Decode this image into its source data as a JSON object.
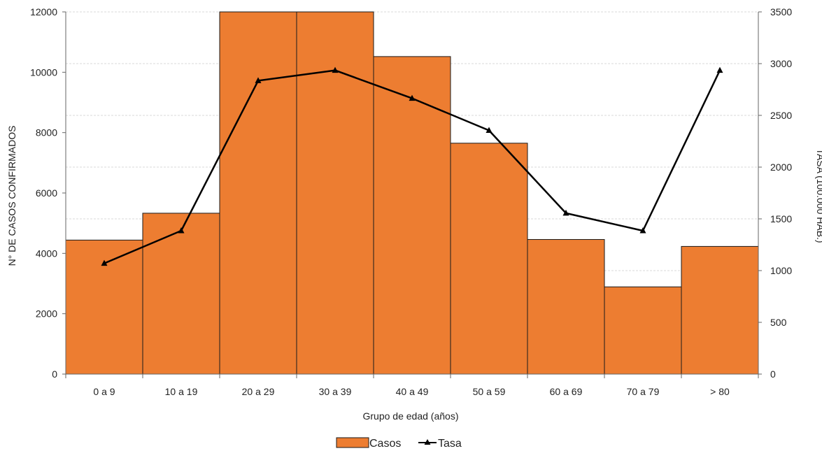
{
  "chart_data": {
    "type": "bar",
    "categories": [
      "0 a 9",
      "10 a 19",
      "20 a 29",
      "30 a 39",
      "40 a 49",
      "50 a 59",
      "60 a 69",
      "70 a 79",
      "> 80"
    ],
    "series": [
      {
        "name": "Casos",
        "kind": "bar",
        "axis": "left",
        "values": [
          4440,
          5330,
          12300,
          12300,
          10520,
          7650,
          4460,
          2890,
          4230
        ]
      },
      {
        "name": "Tasa",
        "kind": "line",
        "axis": "right",
        "marker": "triangle",
        "values": [
          1070,
          1385,
          2835,
          2935,
          2665,
          2355,
          1555,
          1385,
          2935
        ]
      }
    ],
    "xlabel": "Grupo de edad (años)",
    "ylabel": "N° DE CASOS CONFIRMADOS",
    "y2label": "TASA (100.000 HAB.)",
    "ylim": [
      0,
      12000
    ],
    "yticks": [
      0,
      2000,
      4000,
      6000,
      8000,
      10000,
      12000
    ],
    "y2lim": [
      0,
      3500
    ],
    "y2ticks": [
      0,
      500,
      1000,
      1500,
      2000,
      2500,
      3000,
      3500
    ],
    "grid": true,
    "legend_position": "bottom",
    "colors": {
      "bar": "#ED7D31",
      "bar_edge": "#1a1a1a",
      "line": "#000000",
      "grid": "#d9d9d9"
    }
  }
}
